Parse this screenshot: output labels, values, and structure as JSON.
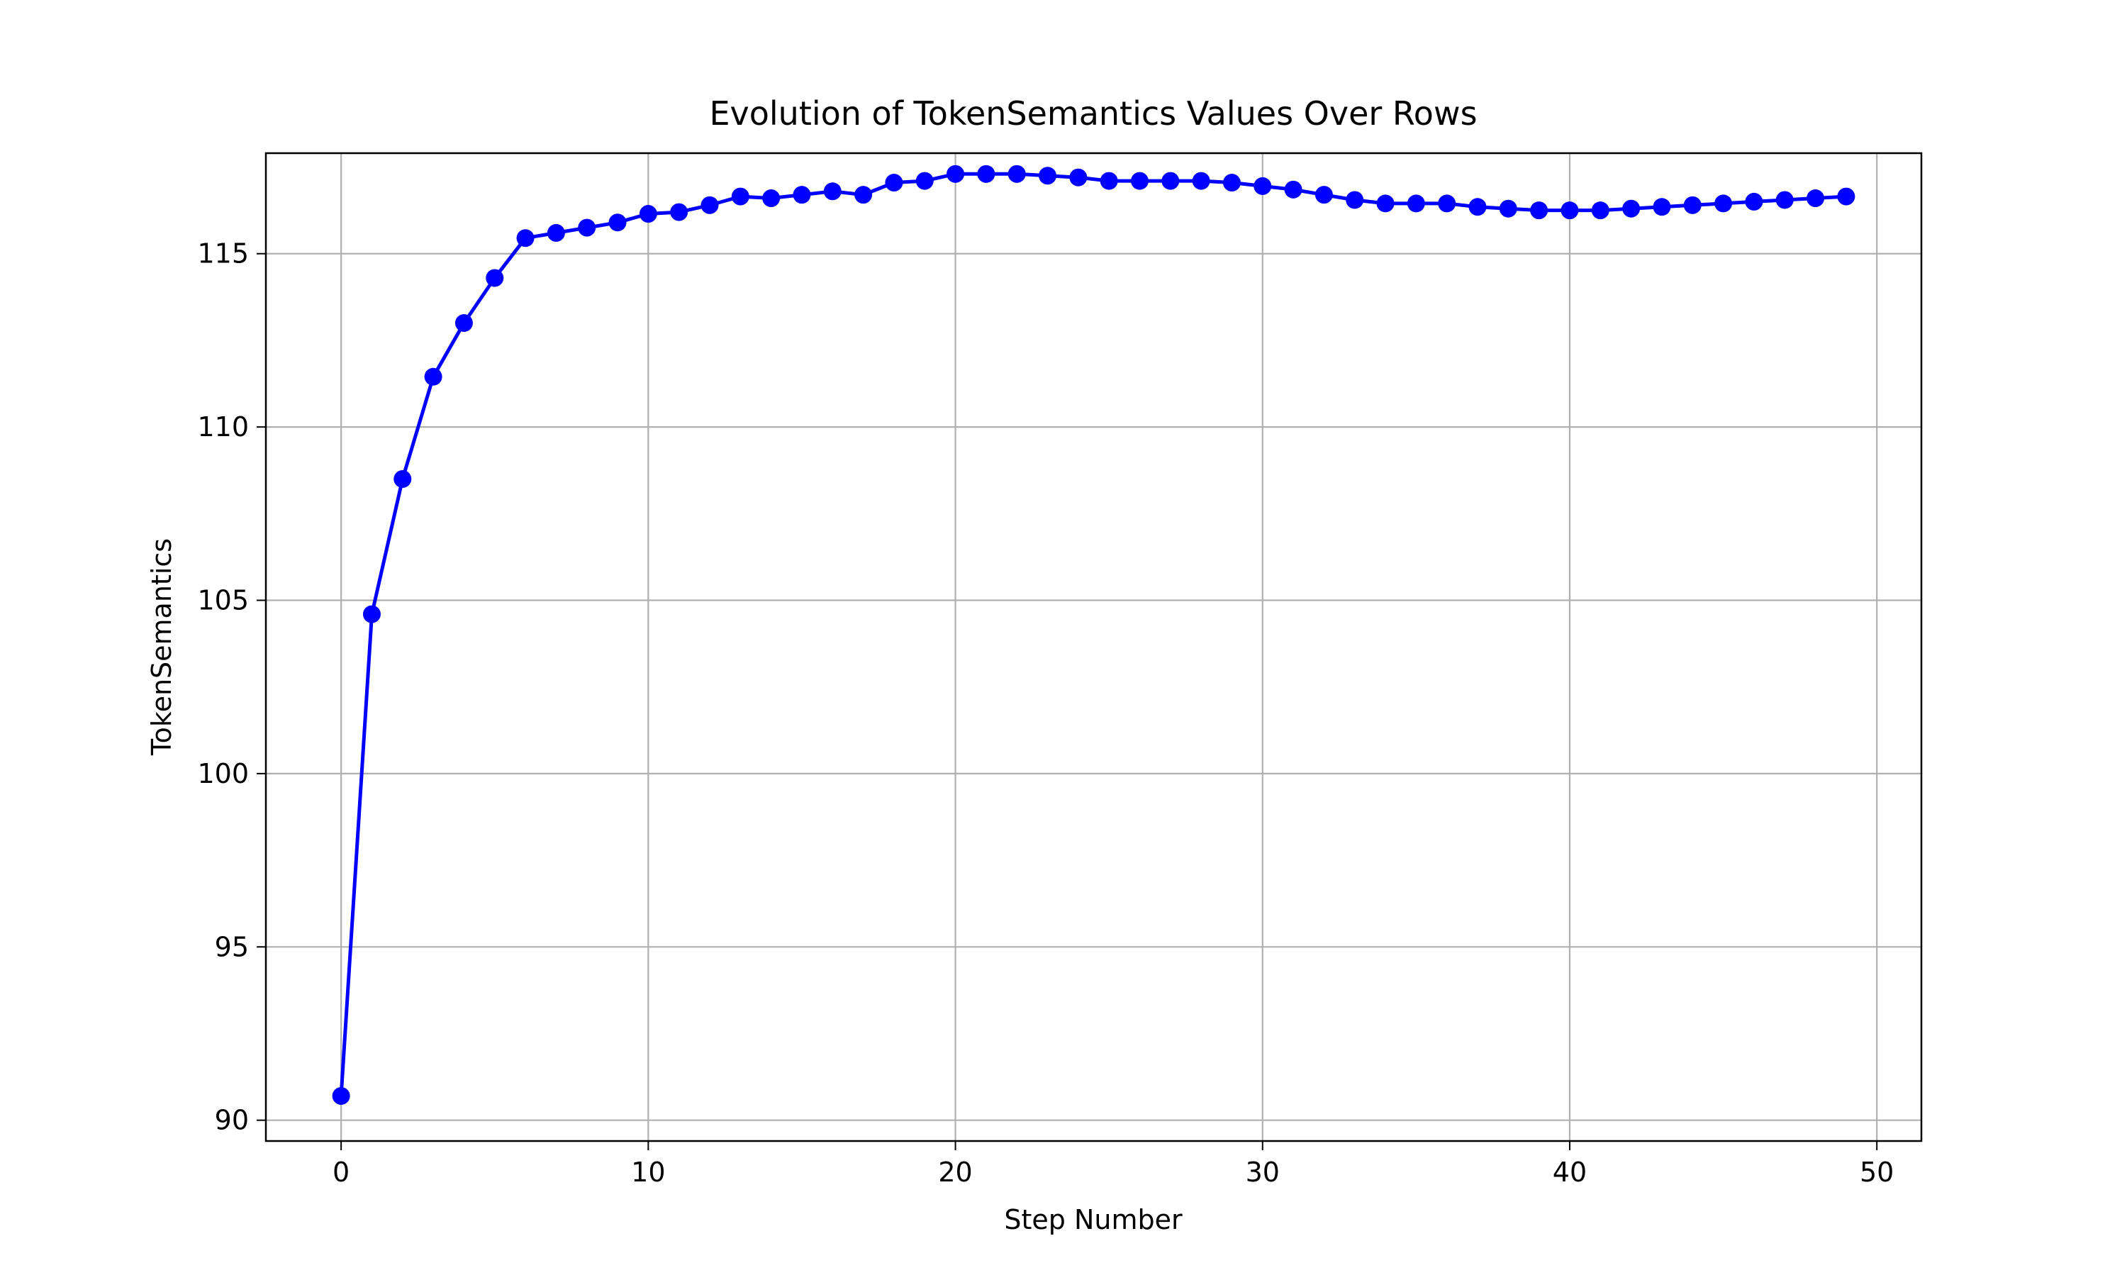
{
  "chart_data": {
    "type": "line",
    "title": "Evolution of TokenSemantics Values Over Rows",
    "xlabel": "Step Number",
    "ylabel": "TokenSemantics",
    "xlim": [
      -2.45,
      51.45
    ],
    "ylim": [
      89.4,
      117.9
    ],
    "xticks": [
      0,
      10,
      20,
      30,
      40,
      50
    ],
    "yticks": [
      90,
      95,
      100,
      105,
      110,
      115
    ],
    "grid": true,
    "line_color": "#0000ff",
    "marker": "circle",
    "series": [
      {
        "x": [
          0,
          1,
          2,
          3,
          4,
          5,
          6,
          7,
          8,
          9,
          10,
          11,
          12,
          13,
          14,
          15,
          16,
          17,
          18,
          19,
          20,
          21,
          22,
          23,
          24,
          25,
          26,
          27,
          28,
          29,
          30,
          31,
          32,
          33,
          34,
          35,
          36,
          37,
          38,
          39,
          40,
          41,
          42,
          43,
          44,
          45,
          46,
          47,
          48,
          49
        ],
        "values": [
          90.7,
          104.6,
          108.5,
          111.45,
          113.0,
          114.3,
          115.45,
          115.6,
          115.75,
          115.9,
          116.15,
          116.2,
          116.4,
          116.65,
          116.6,
          116.7,
          116.8,
          116.7,
          117.05,
          117.1,
          117.3,
          117.3,
          117.3,
          117.25,
          117.2,
          117.1,
          117.1,
          117.1,
          117.1,
          117.05,
          116.95,
          116.85,
          116.7,
          116.55,
          116.45,
          116.45,
          116.45,
          116.35,
          116.3,
          116.25,
          116.25,
          116.25,
          116.3,
          116.35,
          116.4,
          116.45,
          116.5,
          116.55,
          116.6,
          116.65
        ]
      }
    ]
  }
}
